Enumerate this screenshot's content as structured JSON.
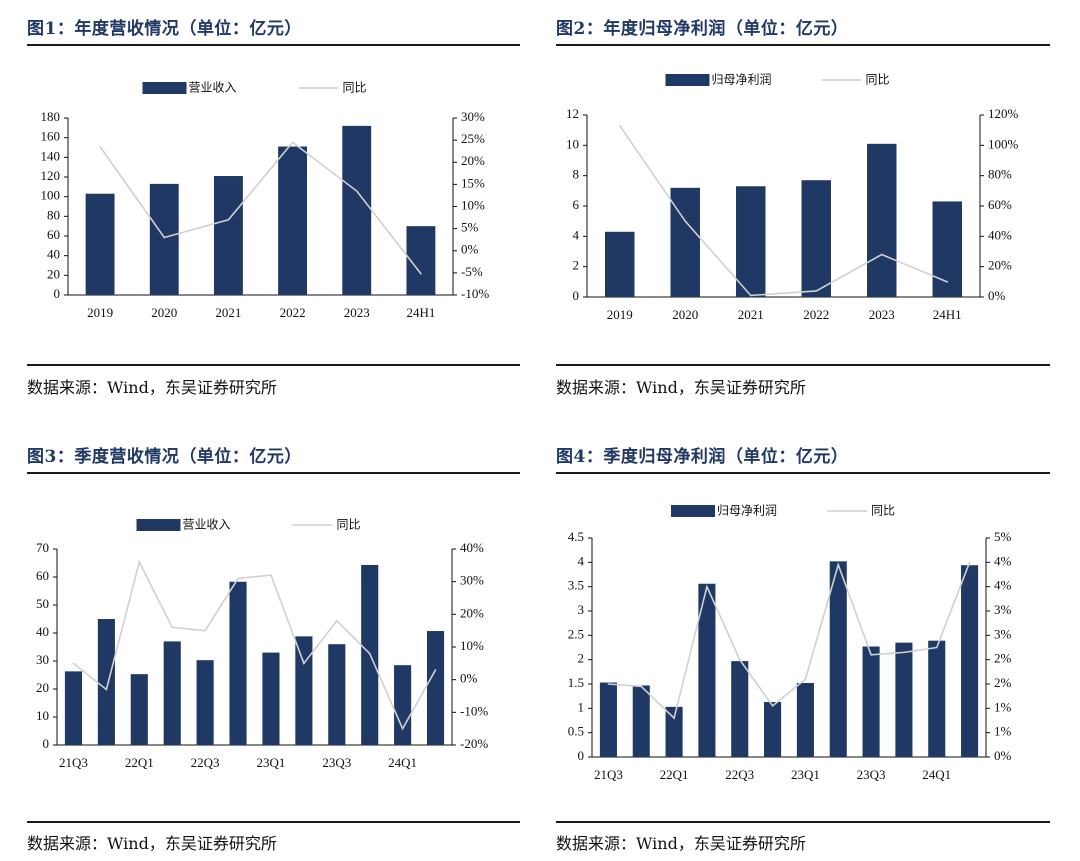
{
  "colors": {
    "bar": "#1f3864",
    "line": "#d0d0d0",
    "title": "#1f3864"
  },
  "source_text": "数据来源：Wind，东吴证券研究所",
  "panels": [
    {
      "title": "图1：年度营收情况（单位：亿元）",
      "chart_data": {
        "type": "bar",
        "title": "图1：年度营收情况（单位：亿元）",
        "categories": [
          "2019",
          "2020",
          "2021",
          "2022",
          "2023",
          "24H1"
        ],
        "x_tick_labels": [
          "2019",
          "2020",
          "2021",
          "2022",
          "2023",
          "24H1"
        ],
        "series": [
          {
            "name": "营业收入",
            "type": "bar",
            "axis": "left",
            "values": [
              103,
              113,
              121,
              151,
              172,
              70
            ]
          },
          {
            "name": "同比",
            "type": "line",
            "axis": "right",
            "values": [
              23.5,
              3.0,
              7.0,
              24.5,
              13.5,
              -5.2
            ]
          }
        ],
        "ylim_left": [
          0,
          180
        ],
        "yticks_left": [
          0,
          20,
          40,
          60,
          80,
          100,
          120,
          140,
          160,
          180
        ],
        "ytick_labels_left": [
          "0",
          "20",
          "40",
          "60",
          "80",
          "100",
          "120",
          "140",
          "160",
          "180"
        ],
        "ylim_right": [
          -10,
          30
        ],
        "yticks_right": [
          -10,
          -5,
          0,
          5,
          10,
          15,
          20,
          25,
          30
        ],
        "ytick_labels_right": [
          "-10%",
          "-5%",
          "0%",
          "5%",
          "10%",
          "15%",
          "20%",
          "25%",
          "30%"
        ],
        "legend": [
          "营业收入",
          "同比"
        ],
        "legend_position": "top-center"
      }
    },
    {
      "title": "图2：年度归母净利润（单位：亿元）",
      "chart_data": {
        "type": "bar",
        "title": "图2：年度归母净利润（单位：亿元）",
        "categories": [
          "2019",
          "2020",
          "2021",
          "2022",
          "2023",
          "24H1"
        ],
        "x_tick_labels": [
          "2019",
          "2020",
          "2021",
          "2022",
          "2023",
          "24H1"
        ],
        "series": [
          {
            "name": "归母净利润",
            "type": "bar",
            "axis": "left",
            "values": [
              4.3,
              7.2,
              7.3,
              7.7,
              10.1,
              6.3
            ]
          },
          {
            "name": "同比",
            "type": "line",
            "axis": "right",
            "values": [
              113,
              50,
              1,
              4,
              28,
              10
            ]
          }
        ],
        "ylim_left": [
          0,
          12
        ],
        "yticks_left": [
          0,
          2,
          4,
          6,
          8,
          10,
          12
        ],
        "ytick_labels_left": [
          "0",
          "2",
          "4",
          "6",
          "8",
          "10",
          "12"
        ],
        "ylim_right": [
          0,
          120
        ],
        "yticks_right": [
          0,
          20,
          40,
          60,
          80,
          100,
          120
        ],
        "ytick_labels_right": [
          "0%",
          "20%",
          "40%",
          "60%",
          "80%",
          "100%",
          "120%"
        ],
        "legend": [
          "归母净利润",
          "同比"
        ],
        "legend_position": "top-center"
      }
    },
    {
      "title": "图3：季度营收情况（单位：亿元）",
      "chart_data": {
        "type": "bar",
        "title": "图3：季度营收情况（单位：亿元）",
        "categories": [
          "21Q3",
          "21Q4",
          "22Q1",
          "22Q2",
          "22Q3",
          "22Q4",
          "23Q1",
          "23Q2",
          "23Q3",
          "23Q4",
          "24Q1",
          "24Q2"
        ],
        "x_tick_labels": [
          "21Q3",
          "",
          "22Q1",
          "",
          "22Q3",
          "",
          "23Q1",
          "",
          "23Q3",
          "",
          "24Q1",
          ""
        ],
        "series": [
          {
            "name": "营业收入",
            "type": "bar",
            "axis": "left",
            "values": [
              26.3,
              45.0,
              25.3,
              37.0,
              30.3,
              58.3,
              33.0,
              38.8,
              36.0,
              64.3,
              28.5,
              40.7
            ]
          },
          {
            "name": "同比",
            "type": "line",
            "axis": "right",
            "values": [
              5,
              -3,
              36,
              16,
              15,
              31,
              32,
              5,
              18,
              8,
              -15,
              3
            ]
          }
        ],
        "ylim_left": [
          0,
          70
        ],
        "yticks_left": [
          0,
          10,
          20,
          30,
          40,
          50,
          60,
          70
        ],
        "ytick_labels_left": [
          "0",
          "10",
          "20",
          "30",
          "40",
          "50",
          "60",
          "70"
        ],
        "ylim_right": [
          -20,
          40
        ],
        "yticks_right": [
          -20,
          -10,
          0,
          10,
          20,
          30,
          40
        ],
        "ytick_labels_right": [
          "-20%",
          "-10%",
          "0%",
          "10%",
          "20%",
          "30%",
          "40%"
        ],
        "legend": [
          "营业收入",
          "同比"
        ],
        "legend_position": "top-center"
      }
    },
    {
      "title": "图4：季度归母净利润（单位：亿元）",
      "chart_data": {
        "type": "bar",
        "title": "图4：季度归母净利润（单位：亿元）",
        "categories": [
          "21Q3",
          "21Q4",
          "22Q1",
          "22Q2",
          "22Q3",
          "22Q4",
          "23Q1",
          "23Q2",
          "23Q3",
          "23Q4",
          "24Q1",
          "24Q2"
        ],
        "x_tick_labels": [
          "21Q3",
          "",
          "22Q1",
          "",
          "22Q3",
          "",
          "23Q1",
          "",
          "23Q3",
          "",
          "24Q1",
          ""
        ],
        "series": [
          {
            "name": "归母净利润",
            "type": "bar",
            "axis": "left",
            "values": [
              1.53,
              1.47,
              1.03,
              3.56,
              1.97,
              1.13,
              1.52,
              4.02,
              2.27,
              2.35,
              2.39,
              3.94
            ]
          },
          {
            "name": "同比",
            "type": "line",
            "axis": "right",
            "values": [
              1.5,
              1.45,
              0.8,
              3.5,
              2.0,
              1.05,
              1.6,
              3.95,
              2.1,
              2.15,
              2.25,
              4.0
            ]
          }
        ],
        "ylim_left": [
          0,
          4.5
        ],
        "yticks_left": [
          0,
          0.5,
          1,
          1.5,
          2,
          2.5,
          3,
          3.5,
          4,
          4.5
        ],
        "ytick_labels_left": [
          "0",
          "0.5",
          "1",
          "1.5",
          "2",
          "2.5",
          "3",
          "3.5",
          "4",
          "4.5"
        ],
        "ylim_right": [
          0,
          4.5
        ],
        "yticks_right": [
          0,
          0.5,
          1,
          1.5,
          2,
          2.5,
          3,
          3.5,
          4,
          4.5
        ],
        "ytick_labels_right": [
          "0%",
          "1%",
          "1%",
          "2%",
          "2%",
          "3%",
          "3%",
          "4%",
          "4%",
          "5%"
        ],
        "legend": [
          "归母净利润",
          "同比"
        ],
        "legend_position": "top-center"
      }
    }
  ]
}
